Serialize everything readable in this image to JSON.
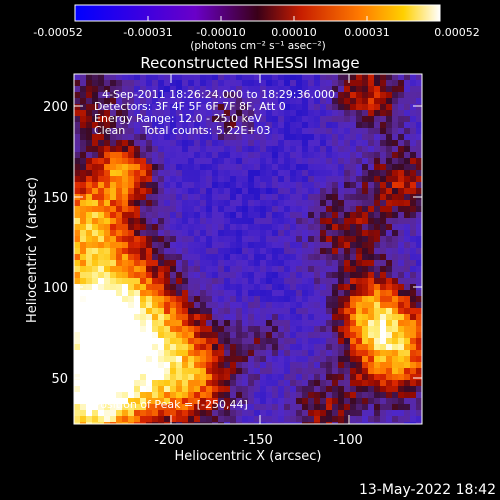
{
  "colorbar": {
    "ticks": [
      "-0.00052",
      "-0.00031",
      "-0.00010",
      "0.00010",
      "0.00031",
      "0.00052"
    ],
    "units_label": "(photons cm⁻² s⁻¹ asec⁻²)"
  },
  "title": "Reconstructed RHESSI Image",
  "info": {
    "line1": "4-Sep-2011 18:26:24.000 to 18:29:36.000",
    "line2": "Detectors: 3F 4F 5F 6F 7F 8F, Att 0",
    "line3": "Energy Range: 12.0 - 25.0 keV",
    "line4": "Clean     Total counts: 5.22E+03"
  },
  "peak_label": "Position of Peak = [-250,44]",
  "axes": {
    "xlabel": "Heliocentric X (arcsec)",
    "ylabel": "Heliocentric Y (arcsec)",
    "xticks": [
      "-200",
      "-150",
      "-100"
    ],
    "yticks": [
      "50",
      "100",
      "150",
      "200"
    ]
  },
  "timestamp": "13-May-2022 18:42",
  "chart_data": {
    "type": "heatmap",
    "title": "Reconstructed RHESSI Image",
    "xlabel": "Heliocentric X (arcsec)",
    "ylabel": "Heliocentric Y (arcsec)",
    "xlim": [
      -245,
      -55
    ],
    "ylim": [
      25,
      218
    ],
    "colorbar_range": [
      -0.00052,
      0.00052
    ],
    "colormap": "blue-purple-red-yellow-white",
    "peak": [
      -250,
      44
    ]
  }
}
